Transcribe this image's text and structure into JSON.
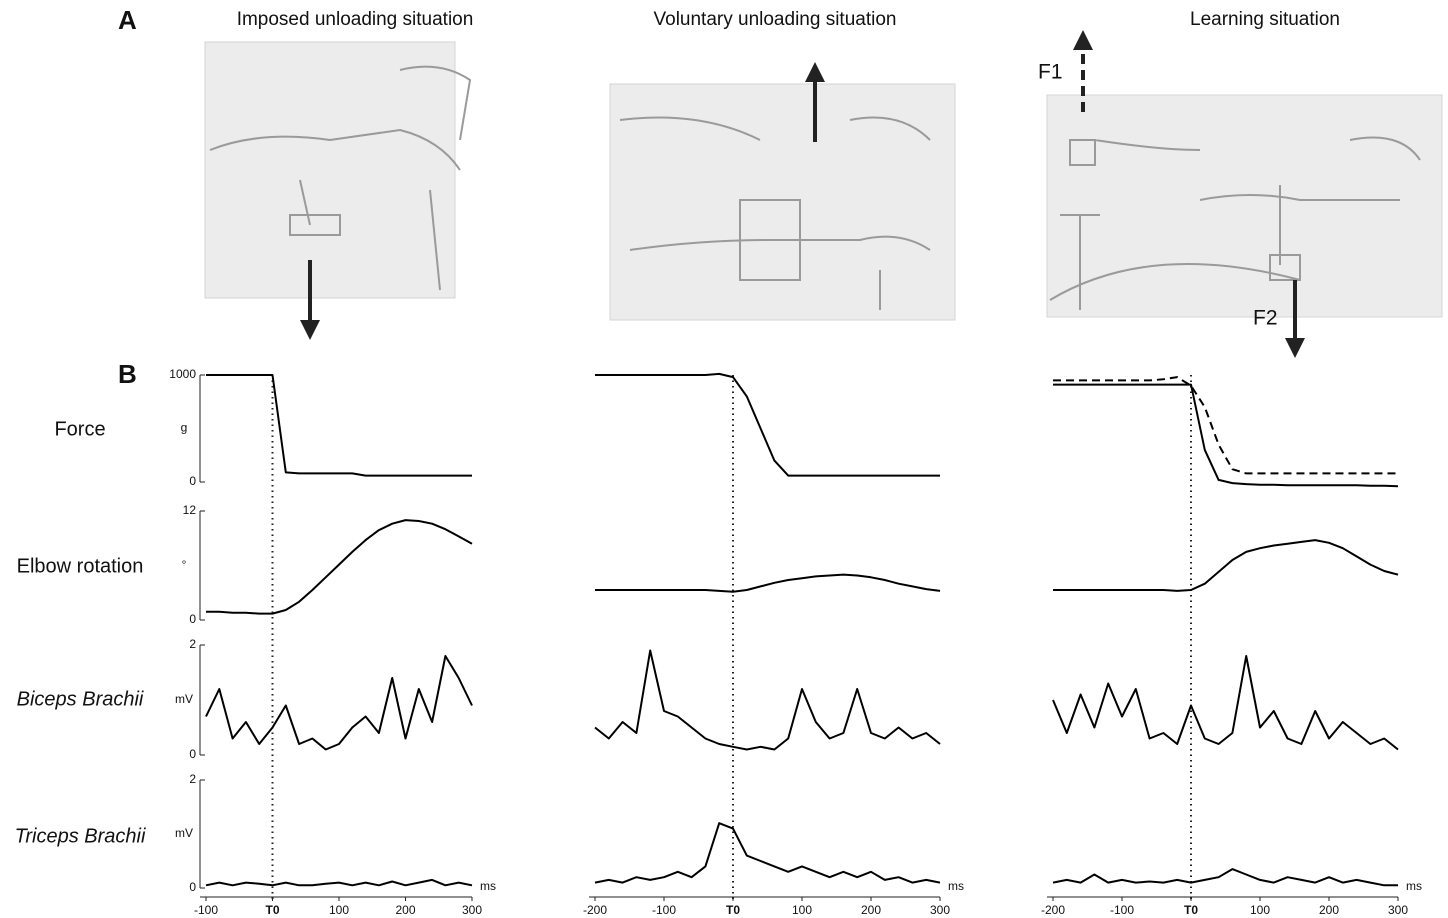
{
  "panel_labels": [
    "A",
    "B"
  ],
  "photo_titles": [
    "Imposed unloading situation",
    "Voluntary unloading situation",
    "Learning situation"
  ],
  "arrow_labels": [
    "F1",
    "F2"
  ],
  "row_labels": [
    "Force",
    "Elbow rotation",
    "Biceps Brachii",
    "Triceps Brachii"
  ],
  "chart_data": [
    {
      "type": "line",
      "x": [
        -100,
        -80,
        -60,
        -40,
        -20,
        0,
        20,
        40,
        60,
        80,
        100,
        120,
        140,
        160,
        180,
        200,
        220,
        240,
        260,
        280,
        300
      ],
      "xlim": [
        -100,
        300
      ],
      "xticks": [
        -100,
        {
          "value": 0,
          "label": "T0"
        },
        100,
        200,
        300
      ],
      "x_unit": "ms",
      "panels": [
        {
          "ylim": [
            0,
            1000
          ],
          "yticks": [
            0,
            1000
          ],
          "y_unit": "g",
          "series": [
            {
              "color": "#000000",
              "line_style": "solid",
              "values": [
                1000,
                1000,
                1000,
                1000,
                1000,
                1000,
                90,
                80,
                80,
                80,
                80,
                80,
                60,
                60,
                60,
                60,
                60,
                60,
                60,
                60,
                60
              ]
            }
          ]
        },
        {
          "ylim": [
            0,
            12
          ],
          "yticks": [
            0,
            12
          ],
          "y_unit": "°",
          "series": [
            {
              "color": "#000000",
              "line_style": "solid",
              "values": [
                0.9,
                0.9,
                0.8,
                0.8,
                0.7,
                0.7,
                1.1,
                2,
                3.3,
                4.7,
                6.1,
                7.5,
                8.8,
                9.9,
                10.6,
                11,
                10.9,
                10.6,
                10,
                9.2,
                8.4
              ]
            }
          ]
        },
        {
          "ylim": [
            0,
            2
          ],
          "yticks": [
            0,
            2
          ],
          "y_unit": "mV",
          "series": [
            {
              "color": "#000000",
              "line_style": "solid",
              "values": [
                0.7,
                1.2,
                0.3,
                0.6,
                0.2,
                0.5,
                0.9,
                0.2,
                0.3,
                0.1,
                0.2,
                0.5,
                0.7,
                0.4,
                1.4,
                0.3,
                1.2,
                0.6,
                1.8,
                1.4,
                0.9
              ]
            }
          ]
        },
        {
          "ylim": [
            0,
            2
          ],
          "yticks": [
            0,
            2
          ],
          "y_unit": "mV",
          "series": [
            {
              "color": "#000000",
              "line_style": "solid",
              "values": [
                0.05,
                0.1,
                0.05,
                0.1,
                0.08,
                0.05,
                0.1,
                0.05,
                0.05,
                0.08,
                0.1,
                0.05,
                0.1,
                0.05,
                0.12,
                0.05,
                0.1,
                0.15,
                0.05,
                0.1,
                0.05
              ]
            }
          ]
        }
      ]
    },
    {
      "type": "line",
      "x": [
        -200,
        -180,
        -160,
        -140,
        -120,
        -100,
        -80,
        -60,
        -40,
        -20,
        0,
        20,
        40,
        60,
        80,
        100,
        120,
        140,
        160,
        180,
        200,
        220,
        240,
        260,
        280,
        300
      ],
      "xlim": [
        -200,
        300
      ],
      "xticks": [
        -200,
        -100,
        {
          "value": 0,
          "label": "T0"
        },
        100,
        200,
        300
      ],
      "x_unit": "ms",
      "panels": [
        {
          "ylim": [
            0,
            1000
          ],
          "series": [
            {
              "color": "#000000",
              "line_style": "solid",
              "values": [
                1000,
                1000,
                1000,
                1000,
                1000,
                1000,
                1000,
                1000,
                1000,
                1010,
                980,
                800,
                500,
                200,
                60,
                60,
                60,
                60,
                60,
                60,
                60,
                60,
                60,
                60,
                60,
                60
              ]
            }
          ]
        },
        {
          "ylim": [
            0,
            12
          ],
          "series": [
            {
              "color": "#000000",
              "line_style": "solid",
              "values": [
                3.3,
                3.3,
                3.3,
                3.3,
                3.3,
                3.3,
                3.3,
                3.3,
                3.3,
                3.2,
                3.1,
                3.3,
                3.7,
                4.1,
                4.4,
                4.6,
                4.8,
                4.9,
                5,
                4.9,
                4.7,
                4.4,
                4,
                3.7,
                3.4,
                3.2
              ]
            }
          ]
        },
        {
          "ylim": [
            0,
            2
          ],
          "series": [
            {
              "color": "#000000",
              "line_style": "solid",
              "values": [
                0.5,
                0.3,
                0.6,
                0.4,
                1.9,
                0.8,
                0.7,
                0.5,
                0.3,
                0.2,
                0.15,
                0.1,
                0.15,
                0.1,
                0.3,
                1.2,
                0.6,
                0.3,
                0.4,
                1.2,
                0.4,
                0.3,
                0.5,
                0.3,
                0.4,
                0.2
              ]
            }
          ]
        },
        {
          "ylim": [
            0,
            2
          ],
          "series": [
            {
              "color": "#000000",
              "line_style": "solid",
              "values": [
                0.1,
                0.15,
                0.1,
                0.2,
                0.15,
                0.2,
                0.3,
                0.2,
                0.4,
                1.2,
                1.1,
                0.6,
                0.5,
                0.4,
                0.3,
                0.4,
                0.3,
                0.2,
                0.3,
                0.2,
                0.3,
                0.15,
                0.2,
                0.1,
                0.15,
                0.1
              ]
            }
          ]
        }
      ]
    },
    {
      "type": "line",
      "x": [
        -200,
        -180,
        -160,
        -140,
        -120,
        -100,
        -80,
        -60,
        -40,
        -20,
        0,
        20,
        40,
        60,
        80,
        100,
        120,
        140,
        160,
        180,
        200,
        220,
        240,
        260,
        280,
        300
      ],
      "xlim": [
        -200,
        300
      ],
      "xticks": [
        -200,
        -100,
        {
          "value": 0,
          "label": "T0"
        },
        100,
        200,
        300
      ],
      "x_unit": "ms",
      "panels": [
        {
          "ylim": [
            0,
            1000
          ],
          "series": [
            {
              "color": "#000000",
              "line_style": "dashed",
              "values": [
                950,
                950,
                950,
                950,
                950,
                950,
                950,
                950,
                960,
                980,
                900,
                700,
                350,
                120,
                80,
                80,
                80,
                80,
                80,
                80,
                80,
                80,
                80,
                80,
                80,
                80
              ]
            },
            {
              "color": "#000000",
              "line_style": "solid",
              "values": [
                910,
                910,
                910,
                910,
                910,
                910,
                910,
                910,
                910,
                910,
                910,
                300,
                20,
                -10,
                -20,
                -25,
                -25,
                -30,
                -30,
                -30,
                -30,
                -30,
                -30,
                -35,
                -35,
                -40
              ]
            }
          ]
        },
        {
          "ylim": [
            0,
            12
          ],
          "series": [
            {
              "color": "#000000",
              "line_style": "solid",
              "values": [
                3.3,
                3.3,
                3.3,
                3.3,
                3.3,
                3.3,
                3.3,
                3.3,
                3.3,
                3.2,
                3.3,
                4,
                5.3,
                6.6,
                7.5,
                7.9,
                8.2,
                8.4,
                8.6,
                8.8,
                8.5,
                7.9,
                7,
                6.1,
                5.4,
                5
              ]
            }
          ]
        },
        {
          "ylim": [
            0,
            2
          ],
          "series": [
            {
              "color": "#000000",
              "line_style": "solid",
              "values": [
                1,
                0.4,
                1.1,
                0.5,
                1.3,
                0.7,
                1.2,
                0.3,
                0.4,
                0.2,
                0.9,
                0.3,
                0.2,
                0.4,
                1.8,
                0.5,
                0.8,
                0.3,
                0.2,
                0.8,
                0.3,
                0.6,
                0.4,
                0.2,
                0.3,
                0.1
              ]
            }
          ]
        },
        {
          "ylim": [
            0,
            2
          ],
          "series": [
            {
              "color": "#000000",
              "line_style": "solid",
              "values": [
                0.1,
                0.15,
                0.1,
                0.25,
                0.1,
                0.15,
                0.1,
                0.12,
                0.1,
                0.15,
                0.1,
                0.15,
                0.2,
                0.35,
                0.25,
                0.15,
                0.1,
                0.2,
                0.15,
                0.1,
                0.2,
                0.1,
                0.15,
                0.1,
                0.05,
                0.05
              ]
            }
          ]
        }
      ]
    }
  ]
}
